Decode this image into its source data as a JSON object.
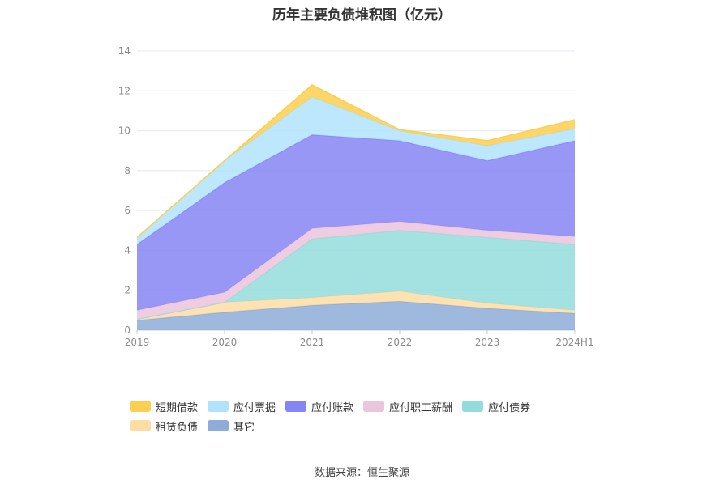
{
  "title": "历年主要负债堆积图（亿元）",
  "source": "数据来源：恒生聚源",
  "chart_data": {
    "type": "area",
    "stacked": true,
    "title": "历年主要负债堆积图（亿元）",
    "categories": [
      "2019",
      "2020",
      "2021",
      "2022",
      "2023",
      "2024H1"
    ],
    "ylim": [
      0,
      14
    ],
    "yticks": [
      "0",
      "2",
      "4",
      "6",
      "8",
      "10",
      "12",
      "14"
    ],
    "grid": true,
    "legend_position": "bottom-left",
    "series": [
      {
        "name": "其它",
        "color": "#8eacd8",
        "values": [
          0.5,
          0.9,
          1.25,
          1.45,
          1.1,
          0.85
        ]
      },
      {
        "name": "租赁负债",
        "color": "#fedda4",
        "values": [
          0.05,
          0.5,
          0.38,
          0.5,
          0.25,
          0.15
        ]
      },
      {
        "name": "应付债券",
        "color": "#94dcdc",
        "values": [
          0.0,
          0.0,
          2.95,
          3.05,
          3.3,
          3.3
        ]
      },
      {
        "name": "应付职工薪酬",
        "color": "#ebc4dd",
        "values": [
          0.45,
          0.5,
          0.52,
          0.45,
          0.35,
          0.4
        ]
      },
      {
        "name": "应付账款",
        "color": "#8685f5",
        "values": [
          3.3,
          5.5,
          4.7,
          4.05,
          3.5,
          4.8
        ]
      },
      {
        "name": "应付票据",
        "color": "#b0e3fb",
        "values": [
          0.35,
          1.1,
          1.9,
          0.5,
          0.75,
          0.6
        ]
      },
      {
        "name": "短期借款",
        "color": "#fdcf50",
        "values": [
          0.0,
          0.0,
          0.6,
          0.05,
          0.25,
          0.45
        ]
      }
    ]
  }
}
